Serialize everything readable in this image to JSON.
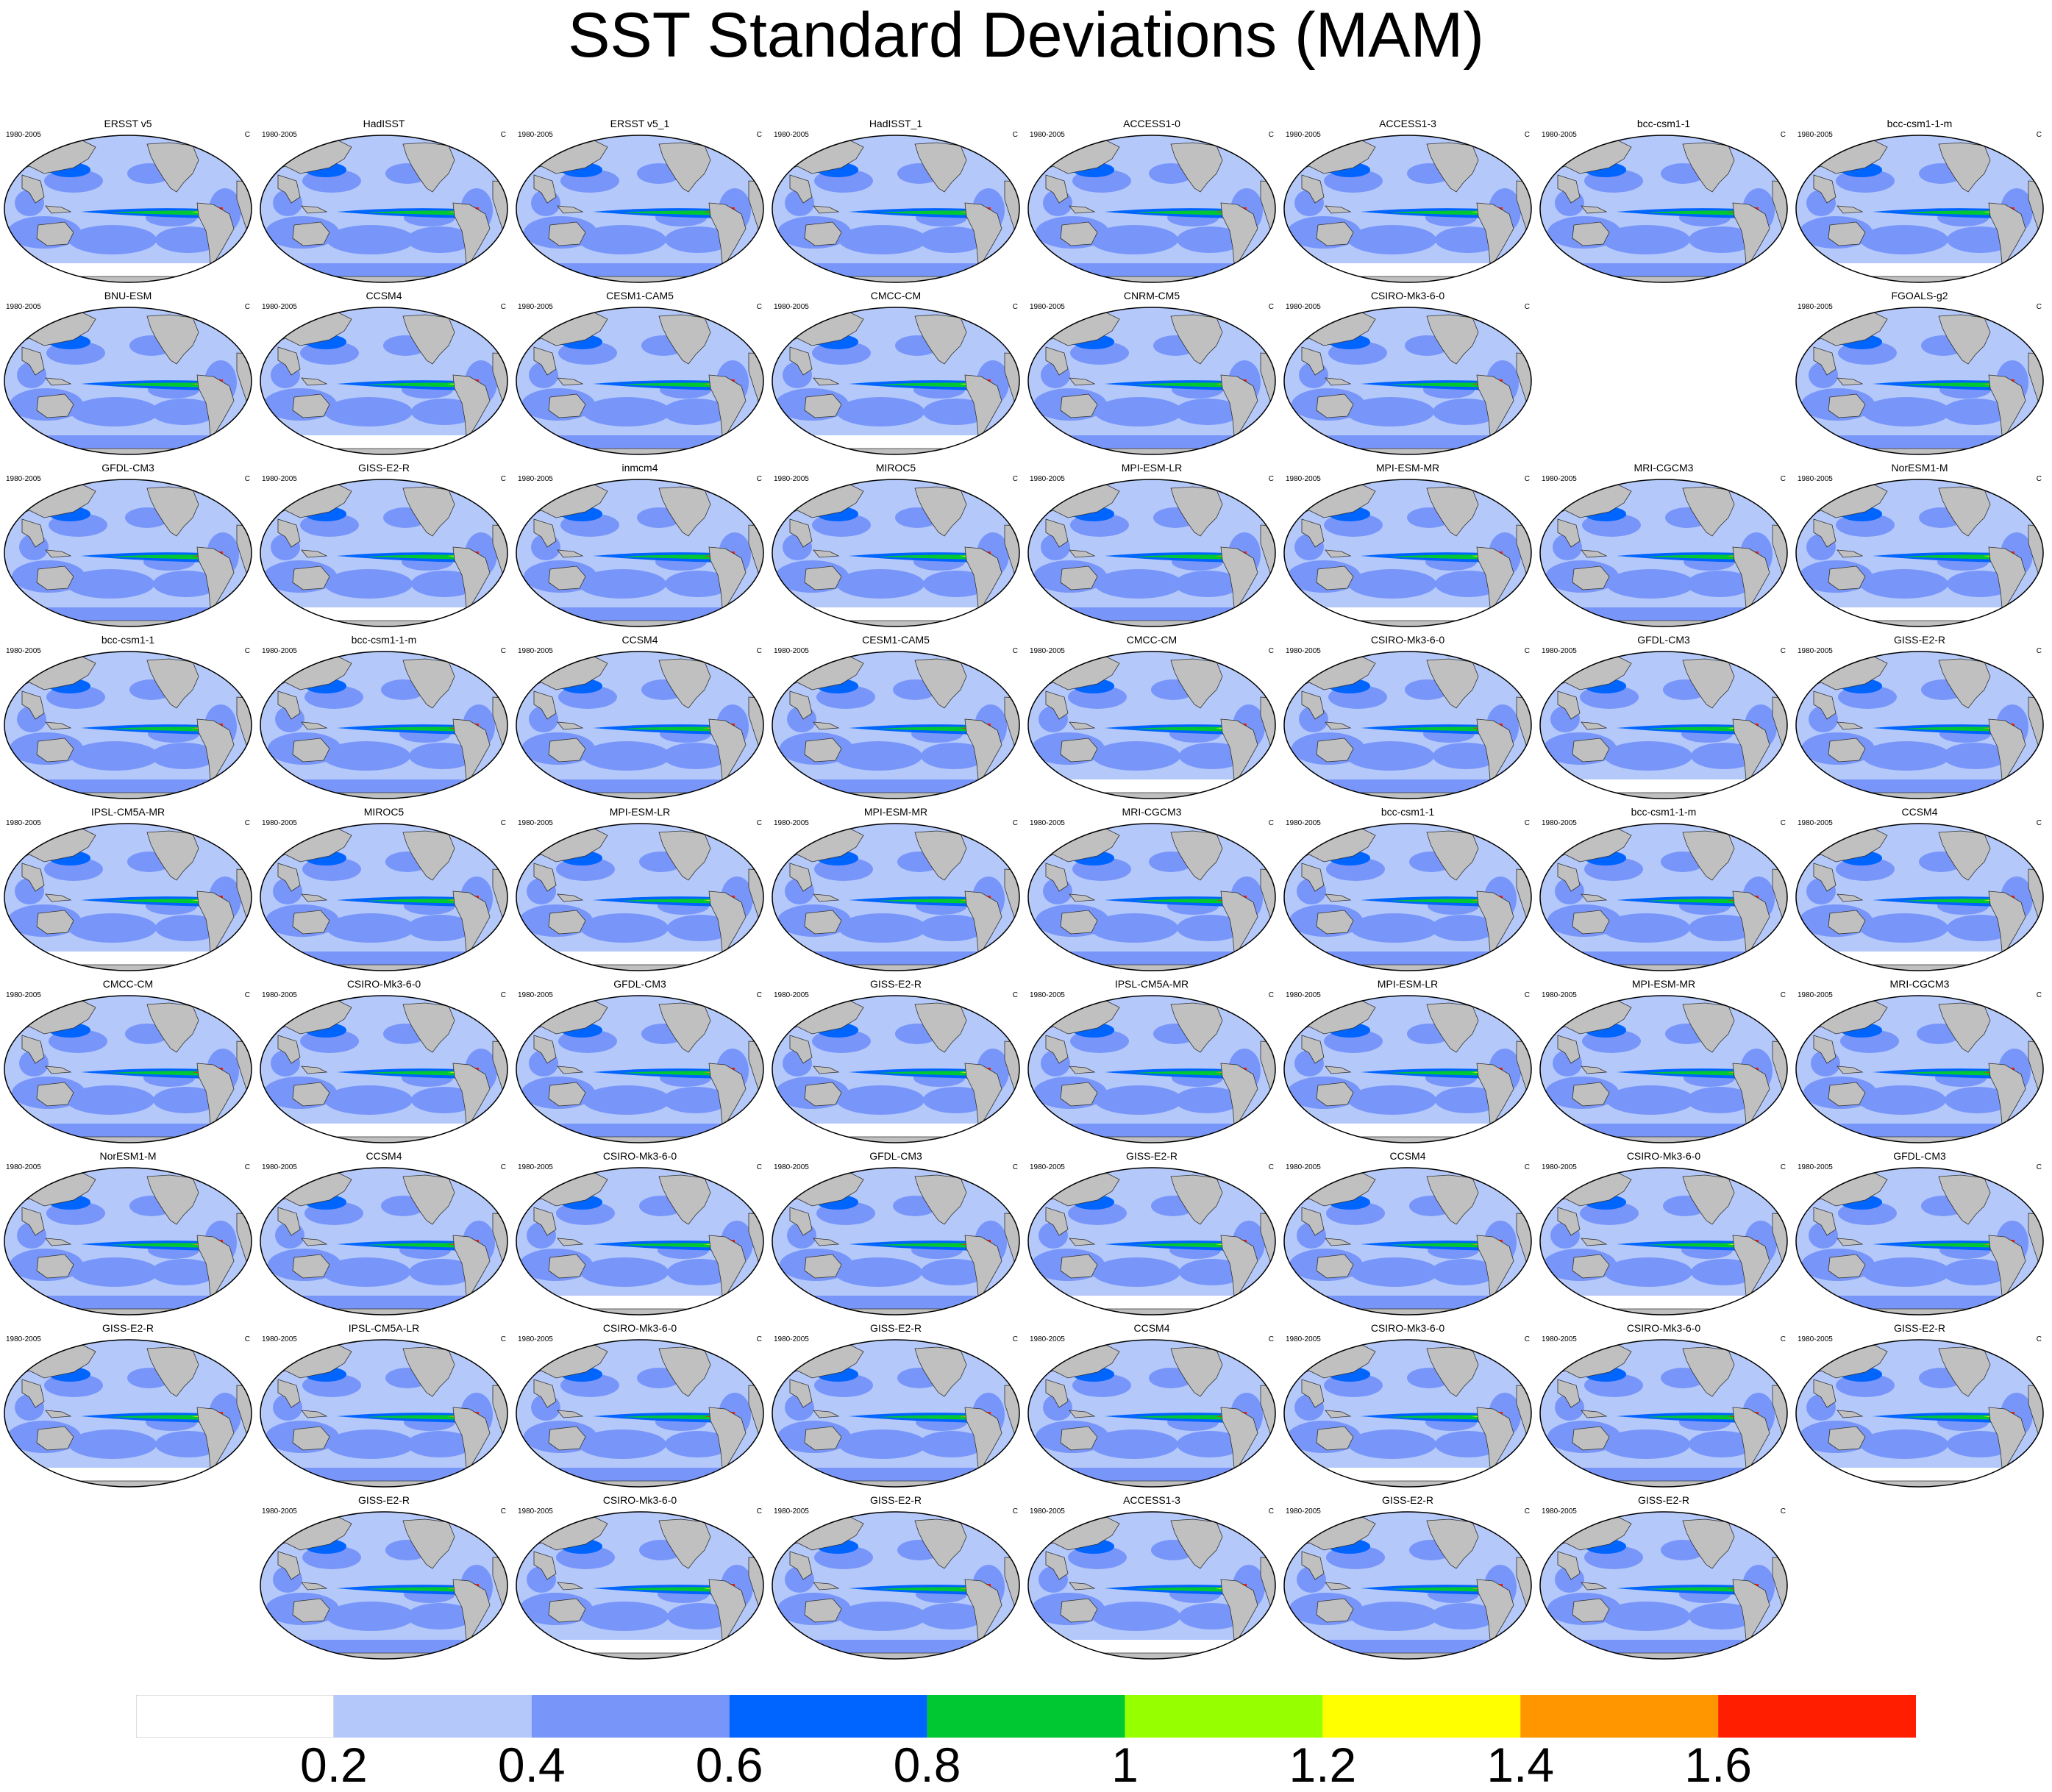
{
  "chart_data": {
    "type": "heatmap",
    "title": "SST Standard Deviations (MAM)",
    "panel_period": "1980-2005",
    "panel_units": "C",
    "levels": [
      0.2,
      0.4,
      0.6,
      0.8,
      1.0,
      1.2,
      1.4,
      1.6
    ],
    "level_labels": [
      "0.2",
      "0.4",
      "0.6",
      "0.8",
      "1",
      "1.2",
      "1.4",
      "1.6"
    ],
    "colors": [
      "#ffffff",
      "#b4c8fa",
      "#7896fa",
      "#0064ff",
      "#00c832",
      "#96ff00",
      "#ffff00",
      "#ff9600",
      "#ff1e00"
    ],
    "land_color": "#c0c0c0",
    "rows": [
      [
        "ERSST v5",
        "HadISST",
        "ERSST v5_1",
        "HadISST_1",
        "ACCESS1-0",
        "ACCESS1-3",
        "bcc-csm1-1",
        "bcc-csm1-1-m"
      ],
      [
        "BNU-ESM",
        "CCSM4",
        "CESM1-CAM5",
        "CMCC-CM",
        "CNRM-CM5",
        "CSIRO-Mk3-6-0",
        null,
        "FGOALS-g2"
      ],
      [
        "GFDL-CM3",
        "GISS-E2-R",
        "inmcm4",
        "MIROC5",
        "MPI-ESM-LR",
        "MPI-ESM-MR",
        "MRI-CGCM3",
        "NorESM1-M"
      ],
      [
        "bcc-csm1-1",
        "bcc-csm1-1-m",
        "CCSM4",
        "CESM1-CAM5",
        "CMCC-CM",
        "CSIRO-Mk3-6-0",
        "GFDL-CM3",
        "GISS-E2-R"
      ],
      [
        "IPSL-CM5A-MR",
        "MIROC5",
        "MPI-ESM-LR",
        "MPI-ESM-MR",
        "MRI-CGCM3",
        "bcc-csm1-1",
        "bcc-csm1-1-m",
        "CCSM4"
      ],
      [
        "CMCC-CM",
        "CSIRO-Mk3-6-0",
        "GFDL-CM3",
        "GISS-E2-R",
        "IPSL-CM5A-MR",
        "MPI-ESM-LR",
        "MPI-ESM-MR",
        "MRI-CGCM3"
      ],
      [
        "NorESM1-M",
        "CCSM4",
        "CSIRO-Mk3-6-0",
        "GFDL-CM3",
        "GISS-E2-R",
        "CCSM4",
        "CSIRO-Mk3-6-0",
        "GFDL-CM3"
      ],
      [
        "GISS-E2-R",
        "IPSL-CM5A-LR",
        "CSIRO-Mk3-6-0",
        "GISS-E2-R",
        "CCSM4",
        "CSIRO-Mk3-6-0",
        "CSIRO-Mk3-6-0",
        "GISS-E2-R"
      ],
      [
        null,
        "GISS-E2-R",
        "CSIRO-Mk3-6-0",
        "GISS-E2-R",
        "ACCESS1-3",
        "GISS-E2-R",
        "GISS-E2-R",
        null
      ]
    ]
  }
}
